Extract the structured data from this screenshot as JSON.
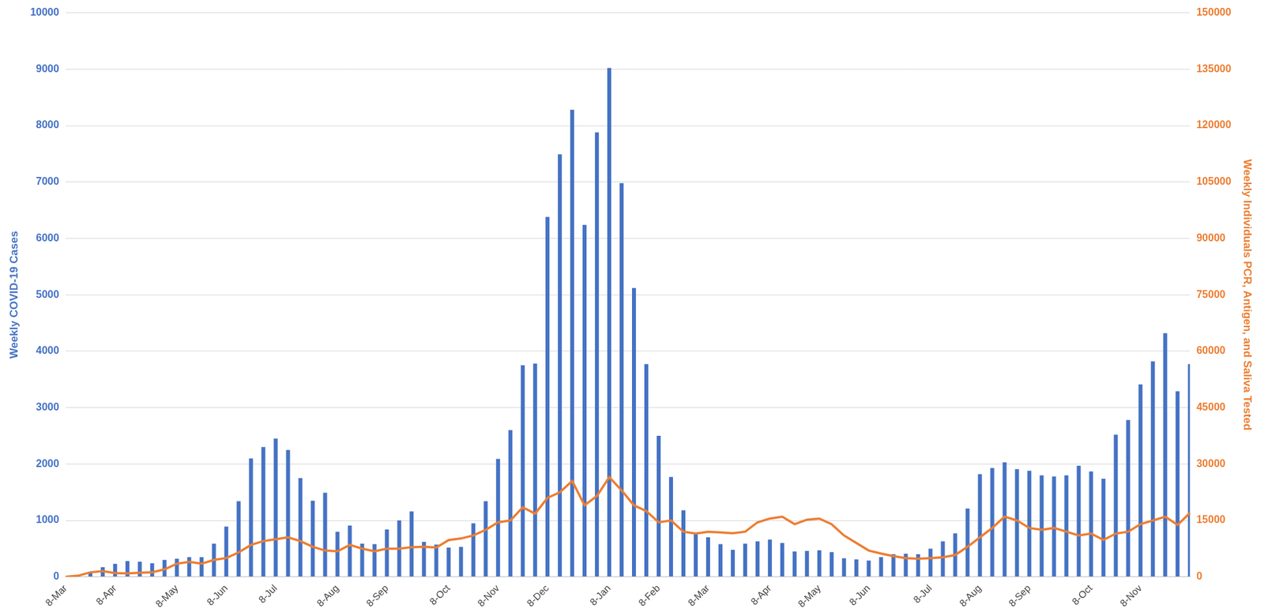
{
  "chart_data": {
    "type": "bar",
    "ylabel": "Weekly COVID-19 Cases",
    "y2label": "Weekly Individuals PCR, Antigen, and Saliva Tested",
    "categories": [
      "8-Mar",
      null,
      null,
      null,
      "8-Apr",
      null,
      null,
      null,
      null,
      "8-May",
      null,
      null,
      null,
      "8-Jun",
      null,
      null,
      null,
      "8-Jul",
      null,
      null,
      null,
      null,
      "8-Aug",
      null,
      null,
      null,
      "8-Sep",
      null,
      null,
      null,
      null,
      "8-Oct",
      null,
      null,
      null,
      "8-Nov",
      null,
      null,
      null,
      "8-Dec",
      null,
      null,
      null,
      null,
      "8-Jan",
      null,
      null,
      null,
      "8-Feb",
      null,
      null,
      null,
      "8-Mar",
      null,
      null,
      null,
      null,
      "8-Apr",
      null,
      null,
      null,
      "8-May",
      null,
      null,
      null,
      "8-Jun",
      null,
      null,
      null,
      null,
      "8-Jul",
      null,
      null,
      null,
      "8-Aug",
      null,
      null,
      null,
      "8-Sep",
      null,
      null,
      null,
      null,
      "8-Oct",
      null,
      null,
      null,
      "8-Nov",
      null,
      null,
      null,
      null
    ],
    "series": [
      {
        "type": "bar",
        "color": "#4472c4",
        "values": [
          5,
          20,
          70,
          170,
          230,
          280,
          270,
          240,
          300,
          320,
          350,
          350,
          590,
          890,
          1340,
          2100,
          2300,
          2450,
          2250,
          1750,
          1350,
          1490,
          800,
          910,
          590,
          580,
          840,
          1000,
          1160,
          620,
          570,
          520,
          530,
          950,
          1340,
          2090,
          2600,
          3750,
          3780,
          6380,
          7490,
          8280,
          6240,
          7880,
          9020,
          6980,
          5120,
          3770,
          2500,
          1770,
          1180,
          780,
          700,
          580,
          480,
          590,
          630,
          660,
          600,
          450,
          460,
          470,
          440,
          330,
          310,
          290,
          350,
          400,
          410,
          400,
          500,
          630,
          770,
          1210,
          1820,
          1930,
          2030,
          1910,
          1880,
          1800,
          1780,
          1800,
          1970,
          1870,
          1740,
          2520,
          2780,
          3410,
          3820,
          4320,
          3290,
          3770
        ]
      },
      {
        "type": "line",
        "color": "#ed7d31",
        "axis": "y2",
        "values": [
          0,
          300,
          1200,
          1500,
          1000,
          900,
          1100,
          1200,
          2000,
          3500,
          4000,
          3500,
          4500,
          5000,
          6500,
          8500,
          9500,
          10000,
          10500,
          9500,
          8000,
          7000,
          6800,
          8500,
          7500,
          6800,
          7500,
          7500,
          7900,
          8000,
          7800,
          9800,
          10200,
          11000,
          12500,
          14500,
          15000,
          18500,
          16800,
          21000,
          22500,
          25500,
          19000,
          21500,
          26500,
          23000,
          19000,
          17500,
          14500,
          15000,
          12000,
          11500,
          12000,
          11800,
          11600,
          12000,
          14500,
          15500,
          16000,
          14000,
          15200,
          15500,
          14000,
          11000,
          9000,
          7000,
          6200,
          5500,
          5000,
          4800,
          5000,
          5200,
          5800,
          8000,
          10500,
          13000,
          16000,
          15000,
          13000,
          12500,
          13000,
          12000,
          11000,
          11500,
          9800,
          11500,
          12000,
          14000,
          15000,
          16000,
          13800,
          17000
        ]
      }
    ],
    "ylim": [
      0,
      10000
    ],
    "yticks": [
      0,
      1000,
      2000,
      3000,
      4000,
      5000,
      6000,
      7000,
      8000,
      9000,
      10000
    ],
    "y2lim": [
      0,
      150000
    ],
    "y2ticks": [
      0,
      15000,
      30000,
      45000,
      60000,
      75000,
      90000,
      105000,
      120000,
      135000,
      150000
    ],
    "grid": true
  }
}
